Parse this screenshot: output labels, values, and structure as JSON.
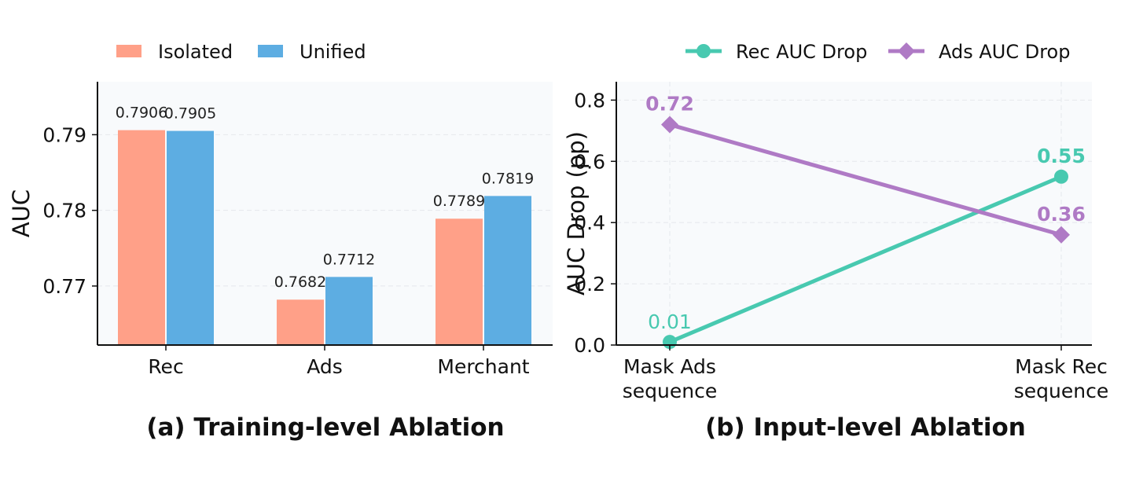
{
  "chart_data": [
    {
      "type": "bar",
      "caption": "(a) Training-level Ablation",
      "ylabel": "AUC",
      "xlabel": "",
      "categories": [
        "Rec",
        "Ads",
        "Merchant"
      ],
      "series": [
        {
          "name": "Isolated",
          "values": [
            0.7906,
            0.7682,
            0.7789
          ],
          "labels": [
            "0.7906",
            "0.7682",
            "0.7789"
          ]
        },
        {
          "name": "Unified",
          "values": [
            0.7905,
            0.7712,
            0.7819
          ],
          "labels": [
            "0.7905",
            "0.7712",
            "0.7819"
          ]
        }
      ],
      "ylim": [
        0.7622,
        0.797
      ],
      "yticks": [
        0.77,
        0.78,
        0.79
      ],
      "ytick_labels": [
        "0.77",
        "0.78",
        "0.79"
      ],
      "grid": "y-dashed",
      "legend": "top-left, outside, horizontal"
    },
    {
      "type": "line",
      "caption": "(b) Input-level Ablation",
      "ylabel": "AUC Drop (pp)",
      "xlabel": "",
      "categories": [
        "Mask Ads\nsequence",
        "Mask Rec\nsequence"
      ],
      "series": [
        {
          "name": "Rec AUC Drop",
          "marker": "circle",
          "values": [
            0.01,
            0.55
          ],
          "labels": [
            "0.01",
            "0.55"
          ]
        },
        {
          "name": "Ads AUC Drop",
          "marker": "diamond",
          "values": [
            0.72,
            0.36
          ],
          "labels": [
            "0.72",
            "0.36"
          ]
        }
      ],
      "ylim": [
        0,
        0.86
      ],
      "yticks": [
        0.0,
        0.2,
        0.4,
        0.6,
        0.8
      ],
      "ytick_labels": [
        "0.0",
        "0.2",
        "0.4",
        "0.6",
        "0.8"
      ],
      "grid": "dashed",
      "legend": "top-right, outside, horizontal"
    }
  ],
  "colors": {
    "isolated": "#FFA088",
    "unified": "#5DADE2",
    "rec_line": "#48C9B0",
    "ads_line": "#AF7AC5",
    "plot_bg": "#F8FAFC",
    "grid": "#E5E8EC"
  }
}
